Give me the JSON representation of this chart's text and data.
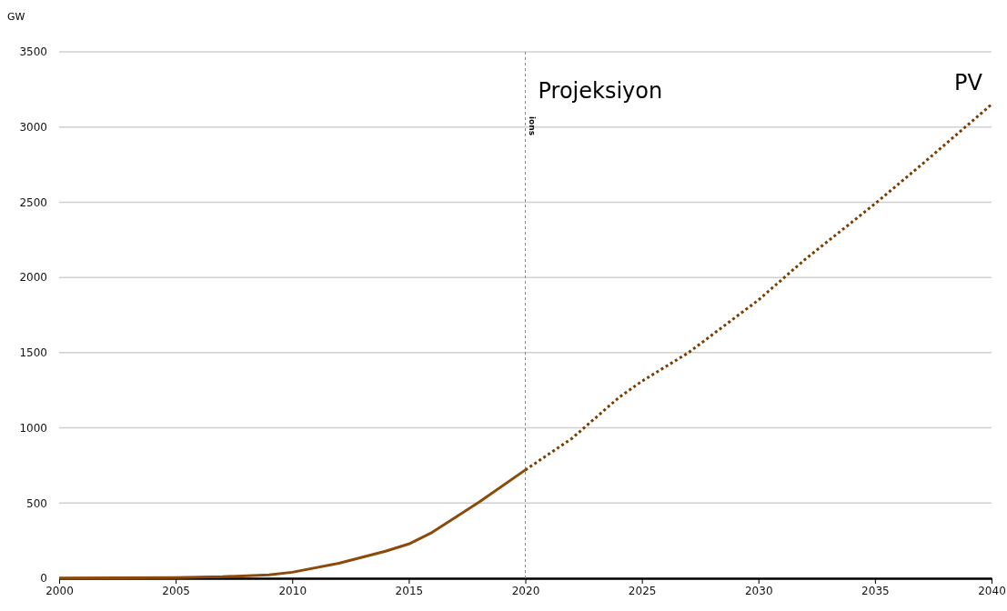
{
  "chart_data": {
    "type": "line",
    "ylabel": "GW",
    "xlim": [
      2000,
      2040
    ],
    "xticks": [
      2000,
      2005,
      2010,
      2015,
      2020,
      2025,
      2030,
      2035,
      2040
    ],
    "ylim": [
      0,
      3500
    ],
    "yticks": [
      0,
      500,
      1000,
      1500,
      2000,
      2500,
      3000,
      3500
    ],
    "grid": "y",
    "legend": false,
    "marker": "none",
    "series": [
      {
        "color": "#8b4a0a",
        "line_style": "solid",
        "x": [
          2000,
          2005,
          2007,
          2009,
          2010,
          2012,
          2014,
          2015,
          2016,
          2018,
          2020
        ],
        "values": [
          1,
          5,
          10,
          23,
          40,
          100,
          180,
          228,
          305,
          505,
          720
        ]
      },
      {
        "name": "PV",
        "color": "#7a3d00",
        "line_style": "dotted",
        "x": [
          2020,
          2022,
          2024,
          2025,
          2027,
          2030,
          2032,
          2035,
          2037,
          2040
        ],
        "values": [
          720,
          930,
          1200,
          1310,
          1500,
          1850,
          2120,
          2490,
          2750,
          3150
        ]
      }
    ],
    "ref_lines": [
      {
        "axis": "x",
        "value": 2020,
        "label": "Projeksiyon",
        "color": "#888888",
        "line_style": "dotted"
      }
    ],
    "annotations": [
      "ions"
    ]
  }
}
